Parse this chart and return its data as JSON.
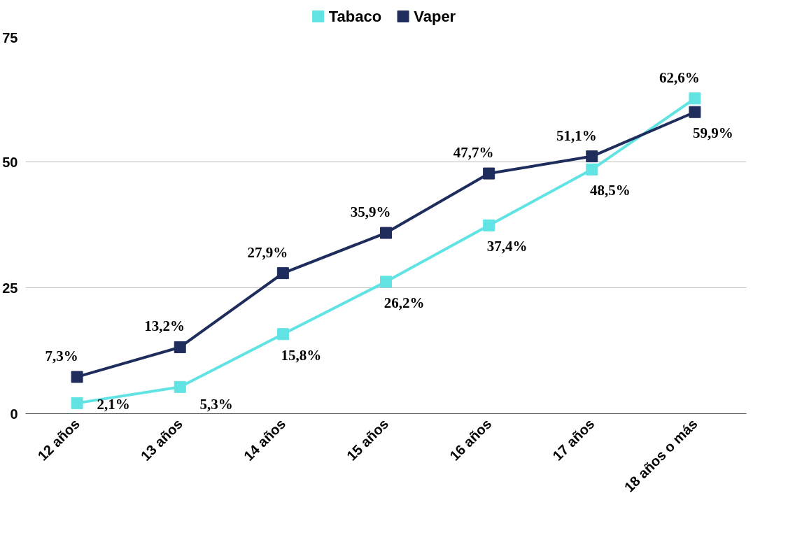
{
  "chart_data": {
    "type": "line",
    "categories": [
      "12 años",
      "13 años",
      "14 años",
      "15 años",
      "16 años",
      "17 años",
      "18 años o más"
    ],
    "series": [
      {
        "name": "Tabaco",
        "color": "#62e3e3",
        "values": [
          2.1,
          5.3,
          15.8,
          26.2,
          37.4,
          48.5,
          62.6
        ],
        "value_labels": [
          "2,1%",
          "5,3%",
          "15,8%",
          "26,2%",
          "37,4%",
          "48,5%",
          "62,6%"
        ]
      },
      {
        "name": "Vaper",
        "color": "#1f2d5c",
        "values": [
          7.3,
          13.2,
          27.9,
          35.9,
          47.7,
          51.1,
          59.9
        ],
        "value_labels": [
          "7,3%",
          "13,2%",
          "27,9%",
          "35,9%",
          "47,7%",
          "51,1%",
          "59,9%"
        ]
      }
    ],
    "ylim": [
      0,
      75
    ],
    "yticks": [
      0,
      25,
      50,
      75
    ],
    "grid": "y",
    "legend": "top",
    "marker": "square",
    "line_style": "solid"
  }
}
